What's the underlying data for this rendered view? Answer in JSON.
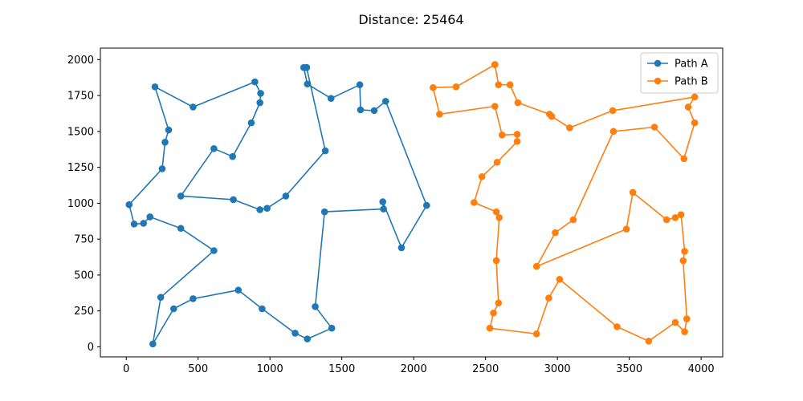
{
  "chart_data": {
    "type": "line",
    "title": "Distance: 25464",
    "xlabel": "",
    "ylabel": "",
    "xlim": [
      -180,
      4150
    ],
    "ylim": [
      -70,
      2080
    ],
    "xticks": [
      0,
      500,
      1000,
      1500,
      2000,
      2500,
      3000,
      3500,
      4000
    ],
    "yticks": [
      0,
      250,
      500,
      750,
      1000,
      1250,
      1500,
      1750,
      2000
    ],
    "grid": false,
    "legend_position": "top-right",
    "series": [
      {
        "name": "Path A",
        "color": "#1f77b4",
        "marker": "circle",
        "points": [
          [
            1255,
            1945
          ],
          [
            1235,
            1945
          ],
          [
            1260,
            1830
          ],
          [
            1425,
            1730
          ],
          [
            1625,
            1825
          ],
          [
            1630,
            1650
          ],
          [
            1725,
            1645
          ],
          [
            1805,
            1710
          ],
          [
            2090,
            985
          ],
          [
            1915,
            690
          ],
          [
            1785,
            1010
          ],
          [
            1790,
            960
          ],
          [
            1380,
            940
          ],
          [
            1315,
            280
          ],
          [
            1430,
            130
          ],
          [
            1260,
            55
          ],
          [
            1175,
            95
          ],
          [
            945,
            265
          ],
          [
            780,
            395
          ],
          [
            465,
            335
          ],
          [
            330,
            265
          ],
          [
            185,
            20
          ],
          [
            240,
            345
          ],
          [
            610,
            670
          ],
          [
            380,
            825
          ],
          [
            165,
            905
          ],
          [
            120,
            860
          ],
          [
            55,
            855
          ],
          [
            20,
            990
          ],
          [
            250,
            1240
          ],
          [
            270,
            1425
          ],
          [
            295,
            1510
          ],
          [
            200,
            1810
          ],
          [
            465,
            1670
          ],
          [
            895,
            1845
          ],
          [
            935,
            1765
          ],
          [
            930,
            1700
          ],
          [
            870,
            1560
          ],
          [
            740,
            1325
          ],
          [
            610,
            1380
          ],
          [
            380,
            1050
          ],
          [
            745,
            1025
          ],
          [
            930,
            955
          ],
          [
            980,
            965
          ],
          [
            1110,
            1050
          ],
          [
            1385,
            1365
          ],
          [
            1255,
            1945
          ]
        ]
      },
      {
        "name": "Path B",
        "color": "#ff7f0e",
        "marker": "circle",
        "points": [
          [
            2565,
            1965
          ],
          [
            2295,
            1810
          ],
          [
            2135,
            1805
          ],
          [
            2180,
            1620
          ],
          [
            2565,
            1675
          ],
          [
            2615,
            1475
          ],
          [
            2720,
            1480
          ],
          [
            2720,
            1430
          ],
          [
            2580,
            1285
          ],
          [
            2475,
            1185
          ],
          [
            2420,
            1005
          ],
          [
            2575,
            940
          ],
          [
            2595,
            900
          ],
          [
            2575,
            600
          ],
          [
            2590,
            305
          ],
          [
            2555,
            235
          ],
          [
            2530,
            130
          ],
          [
            2855,
            90
          ],
          [
            2940,
            340
          ],
          [
            3015,
            470
          ],
          [
            3415,
            140
          ],
          [
            3635,
            40
          ],
          [
            3820,
            170
          ],
          [
            3885,
            105
          ],
          [
            3900,
            195
          ],
          [
            3875,
            600
          ],
          [
            3885,
            665
          ],
          [
            3860,
            920
          ],
          [
            3820,
            900
          ],
          [
            3760,
            885
          ],
          [
            3525,
            1075
          ],
          [
            3480,
            820
          ],
          [
            2855,
            560
          ],
          [
            2985,
            795
          ],
          [
            3110,
            885
          ],
          [
            3390,
            1500
          ],
          [
            3675,
            1530
          ],
          [
            3880,
            1310
          ],
          [
            3955,
            1560
          ],
          [
            3910,
            1670
          ],
          [
            3955,
            1740
          ],
          [
            3385,
            1645
          ],
          [
            3085,
            1525
          ],
          [
            2960,
            1605
          ],
          [
            2945,
            1620
          ],
          [
            2725,
            1700
          ],
          [
            2670,
            1825
          ],
          [
            2590,
            1825
          ],
          [
            2565,
            1965
          ]
        ]
      }
    ]
  }
}
